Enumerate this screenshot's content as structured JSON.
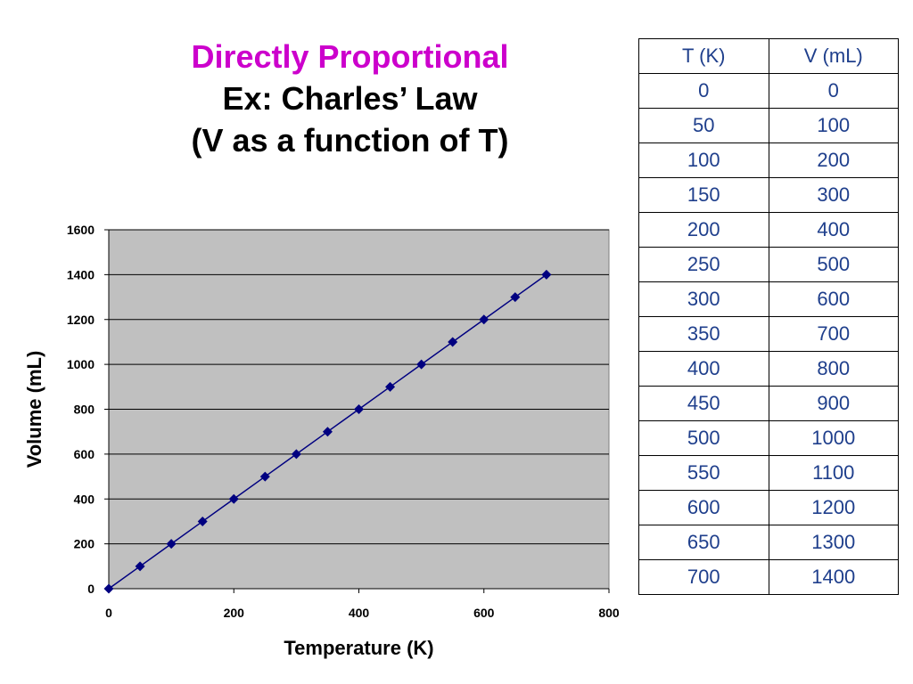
{
  "title": {
    "line1": "Directly Proportional",
    "line2": "Ex: Charles’ Law",
    "line3": "(V as a function of T)"
  },
  "colors": {
    "title_accent": "#cc00cc",
    "plot_background": "#c0c0c0",
    "series": "#000080",
    "table_text": "#1f3f8c"
  },
  "chart_data": {
    "type": "scatter",
    "xlabel": "Temperature (K)",
    "ylabel": "Volume (mL)",
    "xlim": [
      0,
      800
    ],
    "ylim": [
      0,
      1600
    ],
    "xticks": [
      0,
      200,
      400,
      600,
      800
    ],
    "yticks": [
      0,
      200,
      400,
      600,
      800,
      1000,
      1200,
      1400,
      1600
    ],
    "grid": "horizontal",
    "marker": "diamond",
    "line": true,
    "series": [
      {
        "x": [
          0,
          50,
          100,
          150,
          200,
          250,
          300,
          350,
          400,
          450,
          500,
          550,
          600,
          650,
          700
        ],
        "y": [
          0,
          100,
          200,
          300,
          400,
          500,
          600,
          700,
          800,
          900,
          1000,
          1100,
          1200,
          1300,
          1400
        ]
      }
    ]
  },
  "table": {
    "headers": [
      "T (K)",
      "V (mL)"
    ],
    "rows": [
      [
        "0",
        "0"
      ],
      [
        "50",
        "100"
      ],
      [
        "100",
        "200"
      ],
      [
        "150",
        "300"
      ],
      [
        "200",
        "400"
      ],
      [
        "250",
        "500"
      ],
      [
        "300",
        "600"
      ],
      [
        "350",
        "700"
      ],
      [
        "400",
        "800"
      ],
      [
        "450",
        "900"
      ],
      [
        "500",
        "1000"
      ],
      [
        "550",
        "1100"
      ],
      [
        "600",
        "1200"
      ],
      [
        "650",
        "1300"
      ],
      [
        "700",
        "1400"
      ]
    ]
  }
}
